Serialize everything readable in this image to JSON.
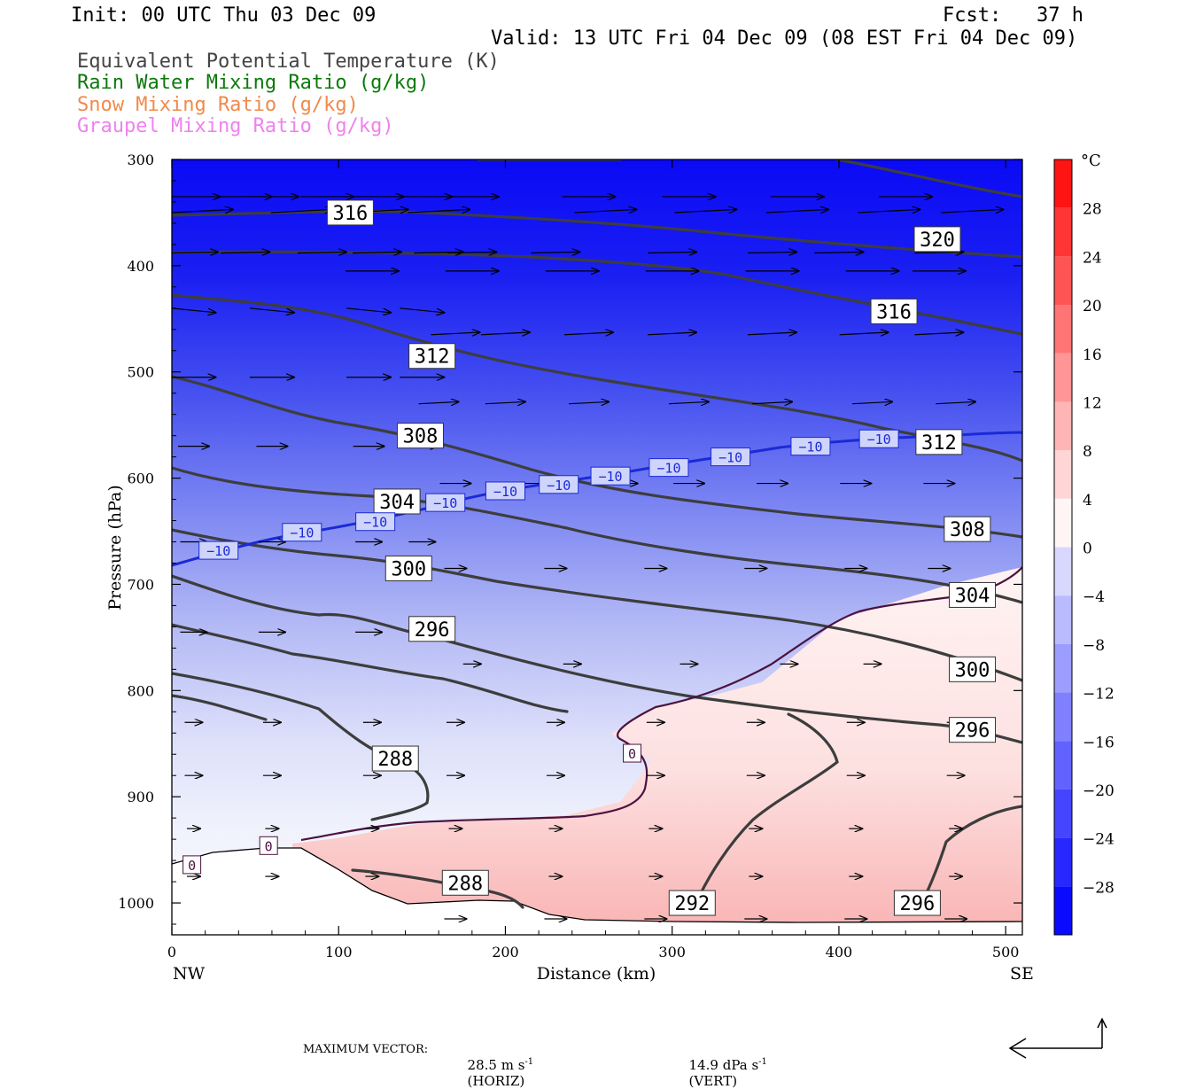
{
  "header": {
    "init": "Init: 00 UTC Thu 03 Dec 09",
    "fcst": "Fcst:   37 h",
    "valid": "Valid: 13 UTC Fri 04 Dec 09 (08 EST Fri 04 Dec 09)"
  },
  "legend": [
    {
      "text": "Equivalent Potential Temperature (K)",
      "color": "#444444"
    },
    {
      "text": "Rain Water Mixing Ratio (g/kg)",
      "color": "#0b7a0b"
    },
    {
      "text": "Snow Mixing Ratio (g/kg)",
      "color": "#f08a4b"
    },
    {
      "text": "Graupel Mixing Ratio (g/kg)",
      "color": "#ee82ee"
    }
  ],
  "footer": {
    "max_label": "MAXIMUM VECTOR:",
    "horiz": "28.5 m s",
    "horiz_exp": "-1",
    "horiz_tag": "(HORIZ)",
    "vert": "14.9 dPa s",
    "vert_exp": "-1",
    "vert_tag": "(VERT)"
  },
  "chart_data": {
    "type": "cross-section",
    "xlabel": "Distance (km)",
    "ylabel": "Pressure (hPa)",
    "x_ticks": [
      0,
      100,
      200,
      300,
      400,
      500
    ],
    "y_ticks": [
      300,
      400,
      500,
      600,
      700,
      800,
      900,
      1000
    ],
    "x_end_labels": {
      "left": "NW",
      "right": "SE"
    },
    "xlim": [
      0,
      510
    ],
    "ylim": [
      1030,
      300
    ],
    "colorbar": {
      "unit": "°C",
      "tick_labels": [
        "28",
        "24",
        "20",
        "16",
        "12",
        "8",
        "4",
        "0",
        "−4",
        "−8",
        "−12",
        "−16",
        "−20",
        "−24",
        "−28"
      ],
      "tick_values": [
        28,
        24,
        20,
        16,
        12,
        8,
        4,
        0,
        -4,
        -8,
        -12,
        -16,
        -20,
        -24,
        -28
      ],
      "range": [
        -32,
        32
      ]
    },
    "theta_e_labels": [
      {
        "text": "316",
        "x": 107,
        "p": 350
      },
      {
        "text": "320",
        "x": 459,
        "p": 375
      },
      {
        "text": "316",
        "x": 433,
        "p": 443
      },
      {
        "text": "312",
        "x": 156,
        "p": 485
      },
      {
        "text": "308",
        "x": 149,
        "p": 560
      },
      {
        "text": "312",
        "x": 460,
        "p": 566
      },
      {
        "text": "304",
        "x": 135,
        "p": 622
      },
      {
        "text": "308",
        "x": 477,
        "p": 648
      },
      {
        "text": "300",
        "x": 142,
        "p": 685
      },
      {
        "text": "304",
        "x": 480,
        "p": 710
      },
      {
        "text": "296",
        "x": 156,
        "p": 742
      },
      {
        "text": "300",
        "x": 480,
        "p": 780
      },
      {
        "text": "296",
        "x": 480,
        "p": 837
      },
      {
        "text": "288",
        "x": 134,
        "p": 864
      },
      {
        "text": "288",
        "x": 176,
        "p": 981
      },
      {
        "text": "292",
        "x": 312,
        "p": 1000
      },
      {
        "text": "296",
        "x": 447,
        "p": 1000
      }
    ],
    "isotherm_labels": [
      {
        "text": "−10",
        "x": 28,
        "p": 668
      },
      {
        "text": "−10",
        "x": 78,
        "p": 651
      },
      {
        "text": "−10",
        "x": 122,
        "p": 641
      },
      {
        "text": "−10",
        "x": 164,
        "p": 623
      },
      {
        "text": "−10",
        "x": 200,
        "p": 612
      },
      {
        "text": "−10",
        "x": 232,
        "p": 606
      },
      {
        "text": "−10",
        "x": 263,
        "p": 598
      },
      {
        "text": "−10",
        "x": 298,
        "p": 590
      },
      {
        "text": "−10",
        "x": 335,
        "p": 580
      },
      {
        "text": "−10",
        "x": 383,
        "p": 570
      },
      {
        "text": "−10",
        "x": 424,
        "p": 563
      },
      {
        "text": "0",
        "x": 276,
        "p": 859
      },
      {
        "text": "0",
        "x": 58,
        "p": 946
      },
      {
        "text": "0",
        "x": 12,
        "p": 964
      }
    ]
  }
}
